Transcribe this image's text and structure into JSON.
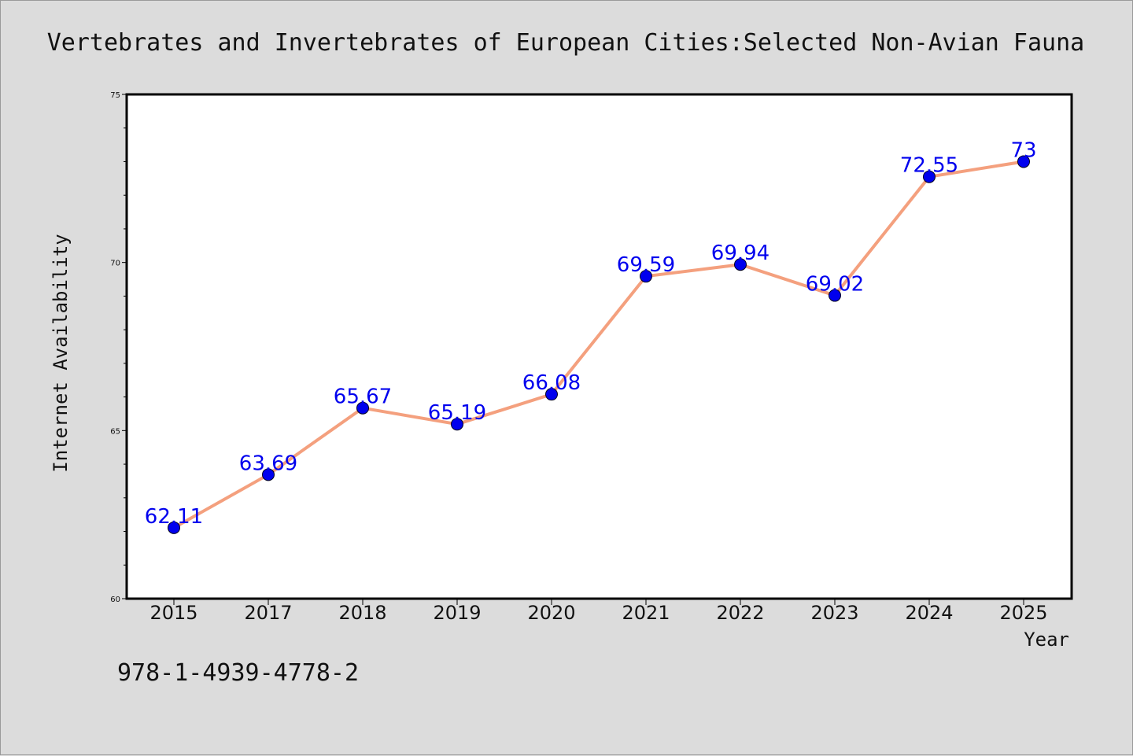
{
  "chart_data": {
    "type": "line",
    "title": "Vertebrates and Invertebrates of European Cities:Selected Non-Avian Fauna",
    "xlabel": "Year",
    "ylabel": "Internet Availability",
    "categories": [
      "2015",
      "2017",
      "2018",
      "2019",
      "2020",
      "2021",
      "2022",
      "2023",
      "2024",
      "2025"
    ],
    "series": [
      {
        "values": [
          62.11,
          63.69,
          65.67,
          65.19,
          66.08,
          69.59,
          69.94,
          69.02,
          72.55,
          73
        ]
      }
    ],
    "data_labels": [
      "62.11",
      "63.69",
      "65.67",
      "65.19",
      "66.08",
      "69.59",
      "69.94",
      "69.02",
      "72.55",
      "73"
    ],
    "ylim": [
      60,
      75
    ],
    "yticks": [
      "60",
      "65",
      "70",
      "75"
    ],
    "grid": false,
    "legend": "none"
  },
  "footer": {
    "isbn": "978-1-4939-4778-2"
  },
  "colors": {
    "line": "#f4a07e",
    "marker": "#0000ee",
    "data_label": "#0000ee",
    "background": "#dcdcdc",
    "plot_area": "#ffffff"
  }
}
